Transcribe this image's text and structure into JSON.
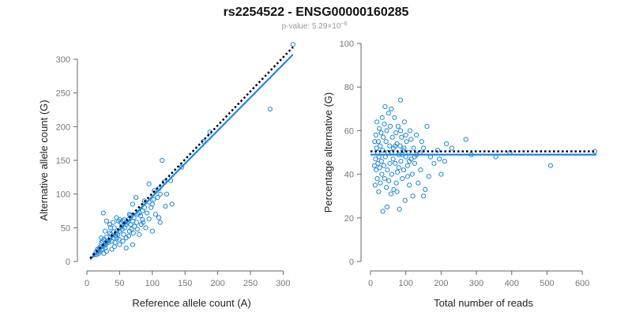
{
  "colors": {
    "point": "#1f86d8",
    "fit_line": "#1e88e5",
    "ref_line": "#000000",
    "axis": "#666666",
    "tick_text": "#777777"
  },
  "header": {
    "title": "rs2254522 - ENSG00000160285",
    "subtitle_prefix": "p-value: 5.29×10",
    "subtitle_exponent": "−6"
  },
  "chart_data": [
    {
      "type": "scatter",
      "xlabel": "Reference allele count (A)",
      "ylabel": "Alternative allele count (G)",
      "xlim": [
        0,
        320
      ],
      "ylim": [
        0,
        300
      ],
      "xticks": [
        0,
        50,
        100,
        150,
        200,
        250,
        300
      ],
      "yticks": [
        0,
        50,
        100,
        150,
        200,
        250,
        300
      ],
      "fit_line": [
        [
          5,
          3
        ],
        [
          315,
          307
        ]
      ],
      "ref_line": [
        [
          5,
          5
        ],
        [
          315,
          318
        ]
      ],
      "points": [
        [
          315,
          322
        ],
        [
          280,
          226
        ],
        [
          188,
          192
        ],
        [
          178,
          178
        ],
        [
          145,
          140
        ],
        [
          115,
          150
        ],
        [
          128,
          120
        ],
        [
          110,
          108
        ],
        [
          95,
          115
        ],
        [
          88,
          90
        ],
        [
          100,
          85
        ],
        [
          120,
          82
        ],
        [
          130,
          85
        ],
        [
          105,
          70
        ],
        [
          90,
          50
        ],
        [
          95,
          63
        ],
        [
          110,
          65
        ],
        [
          85,
          75
        ],
        [
          80,
          72
        ],
        [
          75,
          95
        ],
        [
          70,
          85
        ],
        [
          65,
          70
        ],
        [
          60,
          55
        ],
        [
          68,
          48
        ],
        [
          63,
          62
        ],
        [
          57,
          62
        ],
        [
          53,
          52
        ],
        [
          50,
          45
        ],
        [
          48,
          60
        ],
        [
          46,
          35
        ],
        [
          45,
          42
        ],
        [
          42,
          50
        ],
        [
          40,
          35
        ],
        [
          38,
          30
        ],
        [
          35,
          42
        ],
        [
          33,
          28
        ],
        [
          30,
          36
        ],
        [
          28,
          20
        ],
        [
          26,
          33
        ],
        [
          25,
          22
        ],
        [
          23,
          18
        ],
        [
          22,
          28
        ],
        [
          20,
          15
        ],
        [
          18,
          12
        ],
        [
          16,
          18
        ],
        [
          15,
          10
        ],
        [
          14,
          14
        ],
        [
          12,
          10
        ],
        [
          55,
          30
        ],
        [
          60,
          35
        ],
        [
          65,
          45
        ],
        [
          70,
          60
        ],
        [
          72,
          65
        ],
        [
          78,
          70
        ],
        [
          82,
          68
        ],
        [
          85,
          62
        ],
        [
          58,
          50
        ],
        [
          54,
          48
        ],
        [
          52,
          58
        ],
        [
          47,
          40
        ],
        [
          44,
          38
        ],
        [
          41,
          44
        ],
        [
          37,
          40
        ],
        [
          34,
          32
        ],
        [
          32,
          30
        ],
        [
          29,
          26
        ],
        [
          27,
          24
        ],
        [
          24,
          30
        ],
        [
          21,
          22
        ],
        [
          19,
          20
        ],
        [
          17,
          16
        ],
        [
          35,
          55
        ],
        [
          40,
          58
        ],
        [
          45,
          65
        ],
        [
          50,
          62
        ],
        [
          55,
          60
        ],
        [
          62,
          58
        ],
        [
          67,
          55
        ],
        [
          73,
          52
        ],
        [
          77,
          48
        ],
        [
          83,
          55
        ],
        [
          86,
          58
        ],
        [
          92,
          72
        ],
        [
          98,
          80
        ],
        [
          102,
          92
        ],
        [
          108,
          95
        ],
        [
          112,
          100
        ],
        [
          118,
          118
        ],
        [
          25,
          72
        ],
        [
          30,
          60
        ],
        [
          60,
          20
        ],
        [
          70,
          25
        ],
        [
          80,
          40
        ],
        [
          100,
          45
        ],
        [
          112,
          58
        ],
        [
          122,
          100
        ],
        [
          50,
          25
        ],
        [
          42,
          22
        ],
        [
          38,
          18
        ],
        [
          30,
          15
        ],
        [
          26,
          12
        ],
        [
          22,
          35
        ],
        [
          28,
          45
        ],
        [
          36,
          50
        ],
        [
          43,
          28
        ],
        [
          49,
          33
        ],
        [
          56,
          40
        ],
        [
          64,
          38
        ],
        [
          71,
          42
        ],
        [
          76,
          58
        ],
        [
          88,
          80
        ],
        [
          95,
          88
        ],
        [
          103,
          105
        ],
        [
          66,
          68
        ]
      ]
    },
    {
      "type": "scatter",
      "xlabel": "Total number of reads",
      "ylabel": "Percentage alternative (G)",
      "xlim": [
        0,
        640
      ],
      "ylim": [
        0,
        100
      ],
      "xticks": [
        0,
        100,
        200,
        300,
        400,
        500,
        600
      ],
      "yticks": [
        0,
        20,
        40,
        60,
        80,
        100
      ],
      "fit_line": [
        [
          0,
          49
        ],
        [
          640,
          49
        ]
      ],
      "ref_line": [
        [
          0,
          50.5
        ],
        [
          640,
          50.5
        ]
      ],
      "points": [
        [
          635,
          50.5
        ],
        [
          510,
          44
        ],
        [
          395,
          50
        ],
        [
          355,
          48
        ],
        [
          270,
          56
        ],
        [
          285,
          49
        ],
        [
          230,
          52
        ],
        [
          215,
          54
        ],
        [
          200,
          40
        ],
        [
          195,
          47
        ],
        [
          180,
          45
        ],
        [
          165,
          39
        ],
        [
          160,
          62
        ],
        [
          155,
          33
        ],
        [
          150,
          30
        ],
        [
          145,
          55
        ],
        [
          142,
          42
        ],
        [
          140,
          50
        ],
        [
          135,
          36
        ],
        [
          130,
          58
        ],
        [
          125,
          45
        ],
        [
          122,
          52
        ],
        [
          118,
          40
        ],
        [
          115,
          47
        ],
        [
          112,
          60
        ],
        [
          110,
          35
        ],
        [
          108,
          50
        ],
        [
          105,
          44
        ],
        [
          102,
          55
        ],
        [
          100,
          48
        ],
        [
          98,
          28
        ],
        [
          96,
          64
        ],
        [
          94,
          42
        ],
        [
          92,
          51
        ],
        [
          90,
          38
        ],
        [
          88,
          57
        ],
        [
          86,
          46
        ],
        [
          85,
          74
        ],
        [
          84,
          53
        ],
        [
          82,
          24
        ],
        [
          80,
          49
        ],
        [
          78,
          62
        ],
        [
          76,
          41
        ],
        [
          75,
          54
        ],
        [
          73,
          36
        ],
        [
          72,
          59
        ],
        [
          70,
          45
        ],
        [
          68,
          66
        ],
        [
          66,
          33
        ],
        [
          65,
          52
        ],
        [
          64,
          47
        ],
        [
          62,
          57
        ],
        [
          60,
          40
        ],
        [
          59,
          70
        ],
        [
          58,
          31
        ],
        [
          56,
          62
        ],
        [
          55,
          45
        ],
        [
          54,
          53
        ],
        [
          52,
          37
        ],
        [
          51,
          68
        ],
        [
          50,
          50
        ],
        [
          48,
          42
        ],
        [
          47,
          25
        ],
        [
          46,
          60
        ],
        [
          45,
          34
        ],
        [
          44,
          55
        ],
        [
          42,
          48
        ],
        [
          41,
          71
        ],
        [
          40,
          38
        ],
        [
          39,
          63
        ],
        [
          38,
          44
        ],
        [
          36,
          57
        ],
        [
          35,
          23
        ],
        [
          34,
          51
        ],
        [
          33,
          66
        ],
        [
          32,
          40
        ],
        [
          31,
          46
        ],
        [
          30,
          59
        ],
        [
          28,
          36
        ],
        [
          27,
          53
        ],
        [
          26,
          43
        ],
        [
          25,
          61
        ],
        [
          24,
          48
        ],
        [
          23,
          32
        ],
        [
          22,
          55
        ],
        [
          21,
          45
        ],
        [
          20,
          50
        ],
        [
          19,
          38
        ],
        [
          18,
          64
        ],
        [
          17,
          52
        ],
        [
          16,
          42
        ],
        [
          15,
          58
        ],
        [
          14,
          47
        ],
        [
          13,
          35
        ],
        [
          12,
          55
        ],
        [
          11,
          44
        ],
        [
          120,
          30
        ],
        [
          130,
          49
        ],
        [
          150,
          52
        ],
        [
          170,
          48
        ],
        [
          190,
          51
        ],
        [
          210,
          46
        ],
        [
          75,
          32
        ],
        [
          85,
          60
        ],
        [
          95,
          52
        ],
        [
          105,
          39
        ],
        [
          115,
          56
        ],
        [
          125,
          48
        ],
        [
          60,
          50
        ],
        [
          70,
          53
        ],
        [
          80,
          43
        ],
        [
          90,
          49
        ],
        [
          100,
          58
        ],
        [
          110,
          46
        ]
      ]
    }
  ]
}
